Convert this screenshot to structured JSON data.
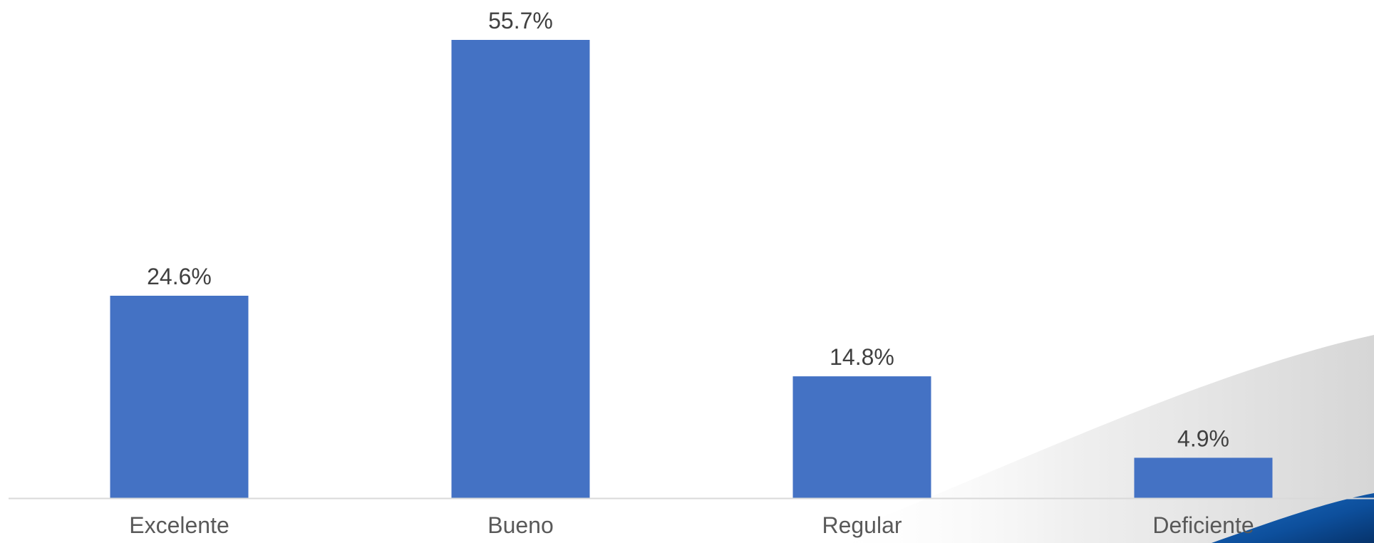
{
  "chart_data": {
    "type": "bar",
    "categories": [
      "Excelente",
      "Bueno",
      "Regular",
      "Deficiente"
    ],
    "values": [
      24.6,
      55.7,
      14.8,
      4.9
    ],
    "value_labels": [
      "24.6%",
      "55.7%",
      "14.8%",
      "4.9%"
    ],
    "title": "",
    "xlabel": "",
    "ylabel": "",
    "ylim": [
      0,
      55.7
    ],
    "grid": false,
    "legend": "none",
    "bar_color": "#4472C4",
    "axis_color": "#D9D9D9"
  }
}
